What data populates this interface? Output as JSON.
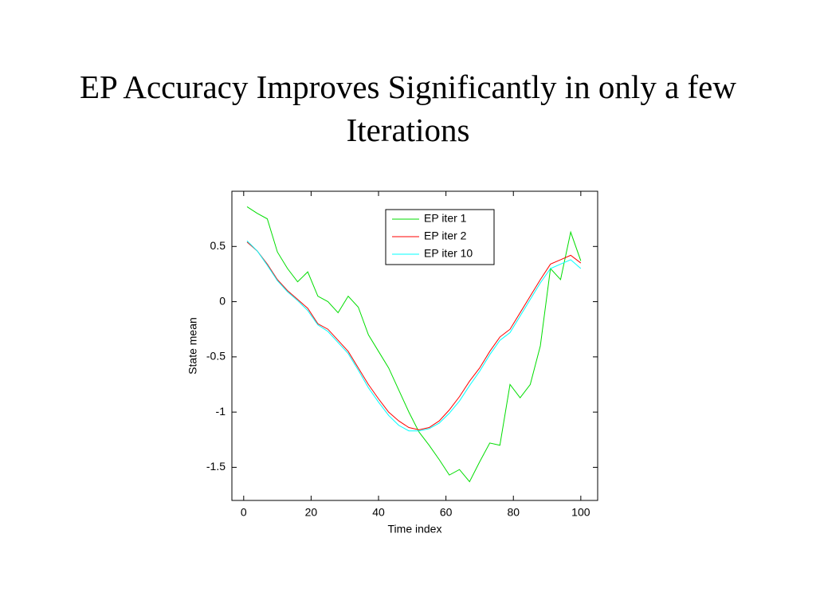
{
  "chart_data": {
    "type": "line",
    "title": "EP Accuracy Improves Significantly in only a few Iterations",
    "xlabel": "Time index",
    "ylabel": "State mean",
    "x": [
      1,
      4,
      7,
      10,
      13,
      16,
      19,
      22,
      25,
      28,
      31,
      34,
      37,
      40,
      43,
      46,
      49,
      52,
      55,
      58,
      61,
      64,
      67,
      70,
      73,
      76,
      79,
      82,
      85,
      88,
      91,
      94,
      97,
      100
    ],
    "series": [
      {
        "name": "EP iter 1",
        "color": "#00dd00",
        "values": [
          0.86,
          0.8,
          0.75,
          0.45,
          0.3,
          0.18,
          0.27,
          0.05,
          0.0,
          -0.1,
          0.05,
          -0.05,
          -0.3,
          -0.45,
          -0.6,
          -0.8,
          -1.0,
          -1.18,
          -1.3,
          -1.43,
          -1.57,
          -1.52,
          -1.63,
          -1.45,
          -1.28,
          -1.3,
          -0.75,
          -0.87,
          -0.75,
          -0.4,
          0.3,
          0.2,
          0.63,
          0.37
        ]
      },
      {
        "name": "EP iter 2",
        "color": "#ff0000",
        "values": [
          0.54,
          0.46,
          0.34,
          0.2,
          0.1,
          0.02,
          -0.06,
          -0.2,
          -0.25,
          -0.35,
          -0.45,
          -0.6,
          -0.75,
          -0.88,
          -1.0,
          -1.08,
          -1.14,
          -1.16,
          -1.14,
          -1.08,
          -0.98,
          -0.86,
          -0.72,
          -0.6,
          -0.45,
          -0.32,
          -0.25,
          -0.1,
          0.05,
          0.2,
          0.34,
          0.38,
          0.42,
          0.35
        ]
      },
      {
        "name": "EP iter 10",
        "color": "#00ffff",
        "values": [
          0.55,
          0.46,
          0.33,
          0.19,
          0.09,
          0.01,
          -0.08,
          -0.21,
          -0.27,
          -0.37,
          -0.47,
          -0.62,
          -0.78,
          -0.91,
          -1.03,
          -1.12,
          -1.17,
          -1.17,
          -1.15,
          -1.1,
          -1.01,
          -0.9,
          -0.76,
          -0.63,
          -0.48,
          -0.35,
          -0.28,
          -0.13,
          0.02,
          0.17,
          0.3,
          0.34,
          0.38,
          0.3
        ]
      }
    ],
    "xlim": [
      -3.5,
      105
    ],
    "ylim": [
      -1.8,
      1
    ],
    "xticks": [
      0,
      20,
      40,
      60,
      80,
      100
    ],
    "yticks": [
      -1.5,
      -1,
      -0.5,
      0,
      0.5
    ],
    "legend": "upper right"
  }
}
